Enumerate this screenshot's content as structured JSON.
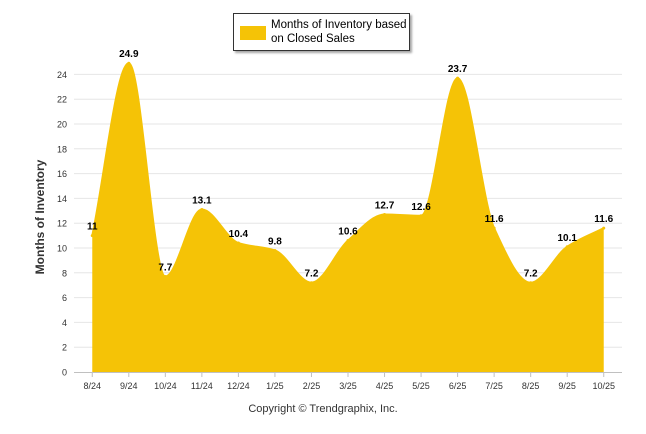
{
  "chart_data": {
    "type": "area",
    "title": "",
    "ylabel": "Months of Inventory",
    "xlabel": "",
    "categories": [
      "8/24",
      "9/24",
      "10/24",
      "11/24",
      "12/24",
      "1/25",
      "2/25",
      "3/25",
      "4/25",
      "5/25",
      "6/25",
      "7/25",
      "8/25",
      "9/25",
      "10/25"
    ],
    "series": [
      {
        "name": "Months of Inventory based on Closed Sales",
        "values": [
          11,
          24.9,
          7.7,
          13.1,
          10.4,
          9.8,
          7.2,
          10.6,
          12.7,
          12.6,
          23.7,
          11.6,
          7.2,
          10.1,
          11.6
        ],
        "color": "#F5C306"
      }
    ],
    "ylim": [
      0,
      25
    ],
    "yticks": [
      0,
      2,
      4,
      6,
      8,
      10,
      12,
      14,
      16,
      18,
      20,
      22,
      24
    ],
    "grid": true,
    "legend_position": "top-center"
  },
  "legend": {
    "label": "Months of Inventory based on Closed Sales"
  },
  "footer": {
    "copyright": "Copyright © Trendgraphix, Inc."
  }
}
